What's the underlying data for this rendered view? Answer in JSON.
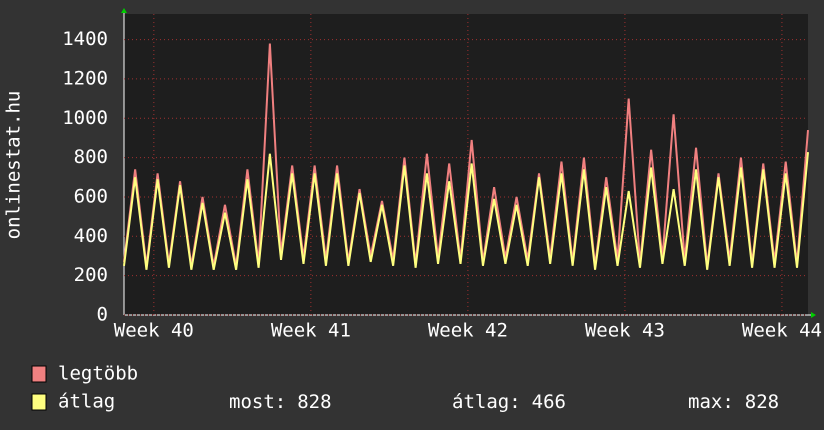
{
  "chart_data": {
    "type": "line",
    "ylabel": "onlinestat.hu",
    "x": [
      39.81,
      39.881,
      39.953,
      40.024,
      40.096,
      40.167,
      40.239,
      40.31,
      40.381,
      40.453,
      40.524,
      40.596,
      40.667,
      40.739,
      40.81,
      40.881,
      40.953,
      41.024,
      41.096,
      41.167,
      41.239,
      41.31,
      41.381,
      41.453,
      41.524,
      41.596,
      41.667,
      41.739,
      41.81,
      41.881,
      41.953,
      42.024,
      42.096,
      42.167,
      42.239,
      42.31,
      42.381,
      42.453,
      42.524,
      42.596,
      42.667,
      42.739,
      42.81,
      42.881,
      42.953,
      43.024,
      43.096,
      43.167,
      43.239,
      43.31,
      43.381,
      43.453,
      43.524,
      43.596,
      43.667,
      43.739,
      43.81,
      43.881,
      43.953,
      44.024,
      44.096,
      44.166
    ],
    "series": [
      {
        "name": "legtöbb",
        "color": "#f08080",
        "values": [
          270,
          740,
          250,
          720,
          260,
          680,
          250,
          600,
          250,
          560,
          250,
          740,
          260,
          1380,
          310,
          760,
          290,
          760,
          280,
          760,
          270,
          640,
          300,
          580,
          280,
          800,
          260,
          820,
          290,
          770,
          280,
          890,
          270,
          650,
          290,
          600,
          280,
          720,
          290,
          780,
          270,
          800,
          250,
          700,
          280,
          1100,
          260,
          840,
          290,
          1020,
          280,
          850,
          250,
          720,
          280,
          800,
          260,
          770,
          270,
          780,
          260,
          940
        ]
      },
      {
        "name": "átlag",
        "color": "#ffff80",
        "values": [
          250,
          700,
          230,
          690,
          240,
          660,
          230,
          570,
          230,
          520,
          230,
          690,
          240,
          820,
          280,
          720,
          260,
          720,
          250,
          720,
          250,
          620,
          270,
          560,
          250,
          760,
          240,
          720,
          260,
          680,
          260,
          770,
          250,
          590,
          260,
          560,
          250,
          700,
          260,
          720,
          250,
          740,
          230,
          650,
          250,
          630,
          240,
          750,
          260,
          640,
          250,
          740,
          230,
          700,
          250,
          750,
          240,
          740,
          240,
          720,
          240,
          828
        ]
      }
    ],
    "xlim": [
      39.81,
      44.166
    ],
    "xticks": [
      {
        "value": 40,
        "label": "Week 40"
      },
      {
        "value": 41,
        "label": "Week 41"
      },
      {
        "value": 42,
        "label": "Week 42"
      },
      {
        "value": 43,
        "label": "Week 43"
      },
      {
        "value": 44,
        "label": "Week 44"
      }
    ],
    "ylim": [
      0,
      1530
    ],
    "yticks": [
      0,
      200,
      400,
      600,
      800,
      1000,
      1200,
      1400
    ],
    "grid": true,
    "stats": [
      {
        "label": "most:",
        "value": 828
      },
      {
        "label": "átlag:",
        "value": 466
      },
      {
        "label": "max:",
        "value": 828
      }
    ]
  }
}
